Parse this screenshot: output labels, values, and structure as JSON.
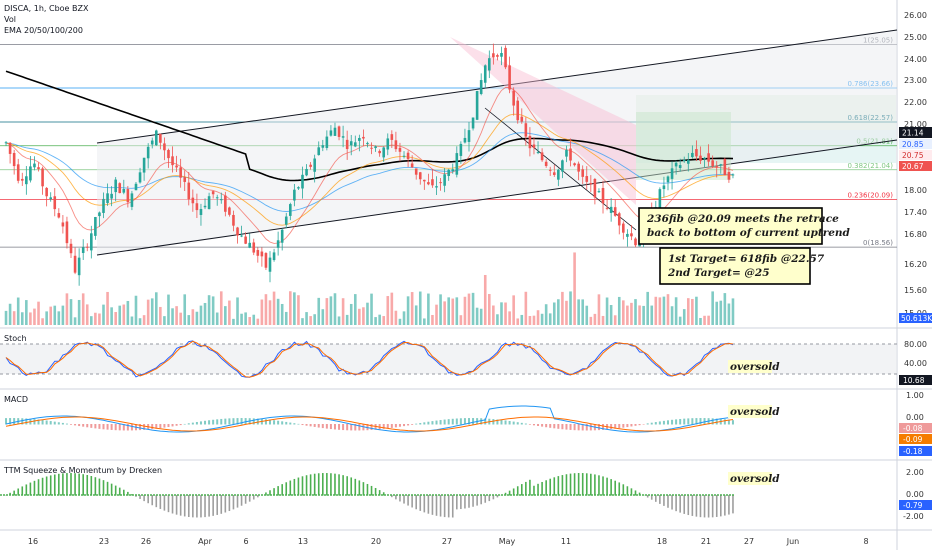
{
  "header": {
    "symbol_line": "DISCA, 1h, Cboe BZX",
    "vol_label": "Vol",
    "ema_label": "EMA 20/50/100/200"
  },
  "price_axis": {
    "ticks": [
      "26.00",
      "25.00",
      "24.00",
      "23.00",
      "22.00",
      "21.00",
      "20.00",
      "19.00",
      "18.00",
      "17.40",
      "16.80",
      "16.20",
      "15.60",
      "15.00"
    ],
    "last_price": "21.14",
    "ema_tag_1": "20.85",
    "ema_tag_2": "20.75",
    "ema_tag_3": "20.67",
    "volume_tag": "50.613K"
  },
  "fib_levels": [
    {
      "label": "1(25.05)",
      "value": 25.05,
      "color": "#787b86"
    },
    {
      "label": "0.786(23.66)",
      "value": 23.66,
      "color": "#2196f3"
    },
    {
      "label": "0.618(22.57)",
      "value": 22.57,
      "color": "#0a6e80"
    },
    {
      "label": "0.5(21.81)",
      "value": 21.81,
      "color": "#4caf50"
    },
    {
      "label": "0.382(21.04)",
      "value": 21.04,
      "color": "#81c784"
    },
    {
      "label": "0.236(20.09)",
      "value": 20.09,
      "color": "#f23645"
    },
    {
      "label": "0(18.56)",
      "value": 18.56,
      "color": "#787b86"
    }
  ],
  "annotations": {
    "box1_line1": "236fib @20.09 meets the retrace",
    "box1_line2": "back to bottom of current uptrend",
    "box2_line1": "1st Target= 618fib @22.57",
    "box2_line2": "2nd Target= @25"
  },
  "panels": {
    "stoch": {
      "title": "Stoch",
      "note": "oversold",
      "ticks": [
        "80.00",
        "40.00"
      ],
      "tag": "10.68"
    },
    "macd": {
      "title": "MACD",
      "note": "oversold",
      "ticks": [
        "1.00",
        "0.00"
      ],
      "tag1": "-0.08",
      "tag2": "-0.09",
      "tag3": "-0.18"
    },
    "ttm": {
      "title": "TTM Squeeze & Momentum by Drecken",
      "note": "oversold",
      "ticks": [
        "2.00",
        "0.00",
        "-2.00"
      ],
      "tag": "-0.79"
    }
  },
  "time_axis": [
    "16",
    "23",
    "26",
    "Apr",
    "6",
    "13",
    "20",
    "27",
    "May",
    "11",
    "18",
    "21",
    "27",
    "Jun",
    "8"
  ],
  "colors": {
    "up": "#26a69a",
    "down": "#ef5350",
    "ema200": "#000000",
    "note_box": "#ffffcc"
  },
  "chart_data": {
    "type": "candlestick",
    "ylim": [
      15.0,
      26.2
    ],
    "close_series_approx": [
      21.9,
      20.7,
      21.3,
      20.2,
      19.5,
      17.8,
      18.8,
      19.9,
      20.6,
      20.1,
      21.4,
      22.2,
      21.3,
      20.5,
      19.7,
      20.3,
      19.8,
      19.0,
      18.5,
      17.9,
      18.9,
      20.3,
      21.0,
      21.9,
      22.4,
      21.8,
      22.2,
      21.6,
      22.0,
      21.5,
      20.9,
      20.4,
      20.8,
      21.5,
      22.8,
      24.5,
      24.9,
      23.2,
      21.9,
      21.4,
      21.0,
      21.6,
      20.7,
      20.3,
      19.8,
      19.2,
      18.7,
      19.6,
      20.6,
      21.2,
      21.5,
      21.4,
      21.1,
      20.8
    ],
    "xlabel": "",
    "ylabel": ""
  }
}
